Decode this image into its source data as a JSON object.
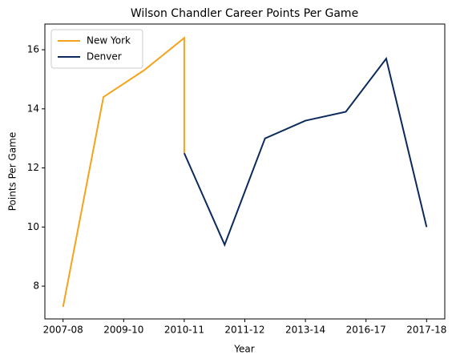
{
  "chart_data": {
    "type": "line",
    "title": "Wilson Chandler Career Points Per Game",
    "xlabel": "Year",
    "ylabel": "Points Per Game",
    "series": [
      {
        "name": "New York",
        "color": "#f5a31c",
        "x": [
          0,
          1,
          2,
          3,
          3
        ],
        "values": [
          7.3,
          14.4,
          15.3,
          16.4,
          12.5
        ]
      },
      {
        "name": "Denver",
        "color": "#0b2a5b",
        "x": [
          3,
          4,
          5,
          6,
          7,
          8,
          9
        ],
        "values": [
          12.5,
          9.4,
          13.0,
          13.6,
          13.9,
          15.7,
          10.0
        ]
      }
    ],
    "xlim": [
      -0.45,
      9.45
    ],
    "xticks": [
      {
        "value": 0,
        "label": "2007-08"
      },
      {
        "value": 1.5,
        "label": "2009-10"
      },
      {
        "value": 3,
        "label": "2010-11"
      },
      {
        "value": 4.5,
        "label": "2011-12"
      },
      {
        "value": 6,
        "label": "2013-14"
      },
      {
        "value": 7.5,
        "label": "2016-17"
      },
      {
        "value": 9,
        "label": "2017-18"
      }
    ],
    "ylim": [
      6.89,
      16.87
    ],
    "yticks": [
      8,
      10,
      12,
      14,
      16
    ],
    "legend": "upper left"
  }
}
